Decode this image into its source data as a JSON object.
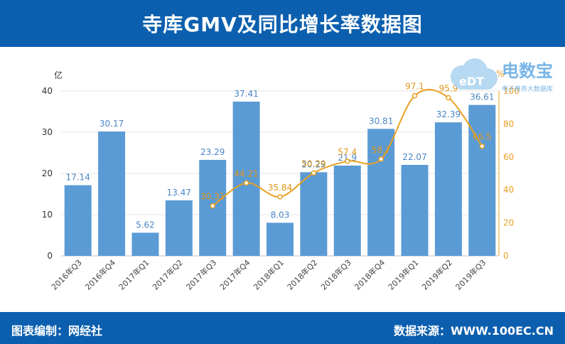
{
  "header": {
    "title": "寺库GMV及同比增长率数据图"
  },
  "footer": {
    "editor": "图表编制：网经社",
    "source": "数据来源：WWW.100EC.CN"
  },
  "logo": {
    "text": "电数宝",
    "subtext": "电子商务大数据库",
    "badge": "eDT"
  },
  "colors": {
    "bar": "#5b9bd5",
    "line": "#e8a020",
    "header": "#0c5fae"
  },
  "chart_data": {
    "type": "bar",
    "categories": [
      "2016年Q3",
      "2016年Q4",
      "2017年Q1",
      "2017年Q2",
      "2017年Q3",
      "2017年Q4",
      "2018年Q1",
      "2018年Q2",
      "2018年Q3",
      "2018年Q4",
      "2019年Q1",
      "2019年Q2",
      "2019年Q3"
    ],
    "series": [
      {
        "type": "bar",
        "axis": "left",
        "values": [
          17.14,
          30.17,
          5.62,
          13.47,
          23.29,
          37.41,
          8.03,
          20.29,
          21.9,
          30.81,
          22.07,
          32.39,
          36.61
        ],
        "labels": [
          "17.14",
          "30.17",
          "5.62",
          "13.47",
          "23.29",
          "37.41",
          "8.03",
          "20.29",
          "21.9",
          "30.81",
          "22.07",
          "32.39",
          "36.61"
        ]
      },
      {
        "type": "line",
        "axis": "right",
        "values": [
          null,
          null,
          null,
          null,
          30.31,
          44.21,
          35.84,
          50.29,
          57.4,
          58.7,
          97.1,
          95.9,
          66.5
        ],
        "labels": [
          "",
          "",
          "",
          "",
          "30.31",
          "44.21",
          "35.84",
          "50.29",
          "57.4",
          "58.7",
          "97.1",
          "95.9",
          "66.5"
        ]
      }
    ],
    "ylabel": "亿",
    "y2label": "%",
    "ylim": [
      0,
      40
    ],
    "y2lim": [
      0,
      100
    ],
    "yticks": [
      0,
      10,
      20,
      30,
      40
    ],
    "y2ticks": [
      0,
      20,
      40,
      60,
      80,
      100
    ],
    "grid": true
  }
}
